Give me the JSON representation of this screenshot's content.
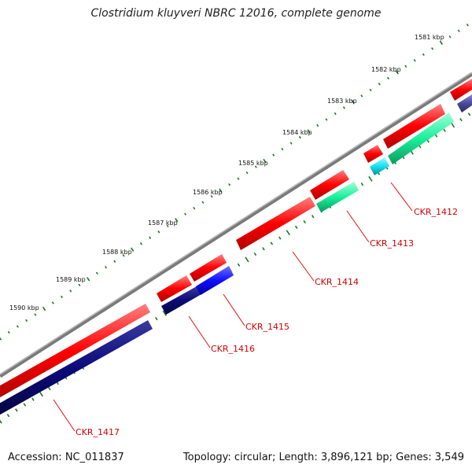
{
  "title": "Clostridium kluyveri NBRC 12016, complete genome",
  "footer": {
    "accession": "Accession: NC_011837",
    "summary": "Topology: circular; Length: 3,896,121 bp; Genes: 3,549"
  },
  "scale_labels": [
    "1581 kbp",
    "1582 kbp",
    "1583 kbp",
    "1584 kbp",
    "1585 kbp",
    "1586 kbp",
    "1587 kbp",
    "1588 kbp",
    "1589 kbp",
    "1590 kbp"
  ],
  "genes": [
    {
      "id": "CKR_1412",
      "label": "CKR_1412"
    },
    {
      "id": "CKR_1413",
      "label": "CKR_1413"
    },
    {
      "id": "CKR_1414",
      "label": "CKR_1414"
    },
    {
      "id": "CKR_1415",
      "label": "CKR_1415"
    },
    {
      "id": "CKR_1416",
      "label": "CKR_1416"
    },
    {
      "id": "CKR_1417",
      "label": "CKR_1417"
    }
  ],
  "colors": {
    "backbone": "#8a8a8a",
    "cds": "#ff0000",
    "cds_dark": "#b00000",
    "rna_green": "#19f09a",
    "rna_cyan": "#14e0f0",
    "blue": "#1010ff",
    "navy": "#0a0a7a",
    "slate": "#4a4a9a",
    "scale_dots": "#1a7a1a",
    "label": "#d00000"
  }
}
